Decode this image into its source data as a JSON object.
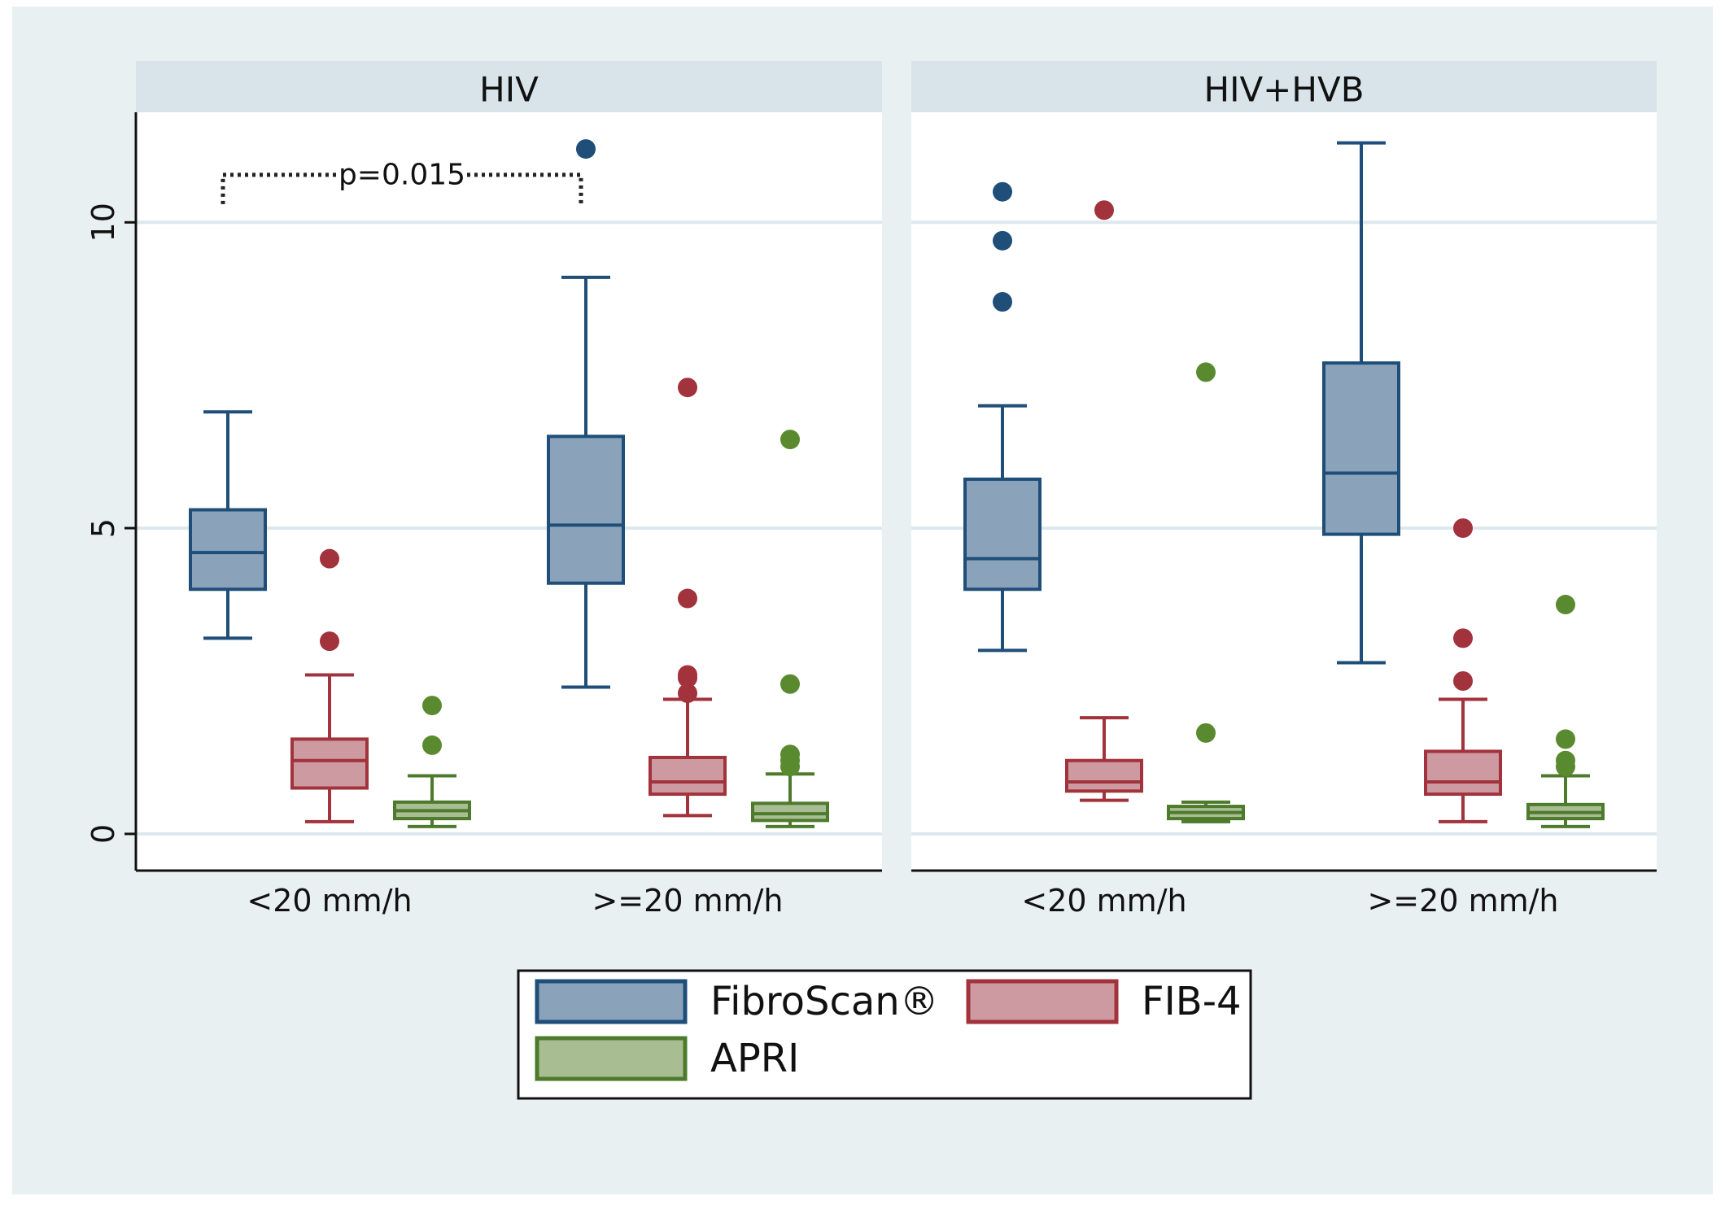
{
  "colors": {
    "outer_background": "#e9f0f2",
    "panel_strip": "#d8e4ea",
    "grid": "#dde8ee",
    "axis": "#111111"
  },
  "chart_data": {
    "type": "box",
    "y_axis": {
      "range": [
        -0.6,
        11.8
      ],
      "ticks": [
        0,
        5,
        10
      ],
      "tick_labels": [
        "0",
        "5",
        "10"
      ]
    },
    "categories": [
      "<20 mm/h",
      ">=20 mm/h"
    ],
    "legend": [
      {
        "key": "fibroscan",
        "label": "FibroScan®",
        "fill": "#8ba3ba",
        "stroke": "#1f4e79",
        "point": "#1f4e79"
      },
      {
        "key": "fib4",
        "label": "FIB-4",
        "fill": "#cc9aa0",
        "stroke": "#a2323c",
        "point": "#a2323c"
      },
      {
        "key": "apri",
        "label": "APRI",
        "fill": "#a9bd93",
        "stroke": "#4e7a2d",
        "point": "#5a8a30"
      }
    ],
    "panels": [
      {
        "title": "HIV",
        "annotation": {
          "text": "p=0.015",
          "y": 10.75,
          "from": [
            0,
            "fibroscan"
          ],
          "to": [
            1,
            "fibroscan"
          ]
        },
        "groups": [
          {
            "category": "<20 mm/h",
            "boxes": {
              "fibroscan": {
                "whisker_low": 3.2,
                "q1": 4.0,
                "median": 4.6,
                "q3": 5.3,
                "whisker_high": 6.9,
                "outliers": []
              },
              "fib4": {
                "whisker_low": 0.2,
                "q1": 0.75,
                "median": 1.2,
                "q3": 1.55,
                "whisker_high": 2.6,
                "outliers": [
                  3.15,
                  4.5
                ]
              },
              "apri": {
                "whisker_low": 0.12,
                "q1": 0.25,
                "median": 0.38,
                "q3": 0.52,
                "whisker_high": 0.95,
                "outliers": [
                  1.45,
                  2.1
                ]
              }
            }
          },
          {
            "category": ">=20 mm/h",
            "boxes": {
              "fibroscan": {
                "whisker_low": 2.4,
                "q1": 4.1,
                "median": 5.05,
                "q3": 6.5,
                "whisker_high": 9.1,
                "outliers": [
                  11.2
                ]
              },
              "fib4": {
                "whisker_low": 0.3,
                "q1": 0.65,
                "median": 0.85,
                "q3": 1.25,
                "whisker_high": 2.2,
                "outliers": [
                  2.3,
                  2.55,
                  2.6,
                  3.85,
                  7.3
                ]
              },
              "apri": {
                "whisker_low": 0.12,
                "q1": 0.22,
                "median": 0.33,
                "q3": 0.5,
                "whisker_high": 0.98,
                "outliers": [
                  1.1,
                  1.2,
                  1.3,
                  2.45,
                  6.45
                ]
              }
            }
          }
        ]
      },
      {
        "title": "HIV+HVB",
        "groups": [
          {
            "category": "<20 mm/h",
            "boxes": {
              "fibroscan": {
                "whisker_low": 3.0,
                "q1": 4.0,
                "median": 4.5,
                "q3": 5.8,
                "whisker_high": 7.0,
                "outliers": [
                  8.7,
                  9.7,
                  10.5
                ]
              },
              "fib4": {
                "whisker_low": 0.55,
                "q1": 0.7,
                "median": 0.85,
                "q3": 1.2,
                "whisker_high": 1.9,
                "outliers": [
                  10.2
                ]
              },
              "apri": {
                "whisker_low": 0.2,
                "q1": 0.25,
                "median": 0.35,
                "q3": 0.45,
                "whisker_high": 0.52,
                "outliers": [
                  1.65,
                  7.55
                ]
              }
            }
          },
          {
            "category": ">=20 mm/h",
            "boxes": {
              "fibroscan": {
                "whisker_low": 2.8,
                "q1": 4.9,
                "median": 5.9,
                "q3": 7.7,
                "whisker_high": 11.3,
                "outliers": []
              },
              "fib4": {
                "whisker_low": 0.2,
                "q1": 0.65,
                "median": 0.85,
                "q3": 1.35,
                "whisker_high": 2.2,
                "outliers": [
                  2.5,
                  3.2,
                  5.0
                ]
              },
              "apri": {
                "whisker_low": 0.12,
                "q1": 0.25,
                "median": 0.35,
                "q3": 0.48,
                "whisker_high": 0.95,
                "outliers": [
                  1.1,
                  1.2,
                  1.55,
                  3.75
                ]
              }
            }
          }
        ]
      }
    ]
  }
}
